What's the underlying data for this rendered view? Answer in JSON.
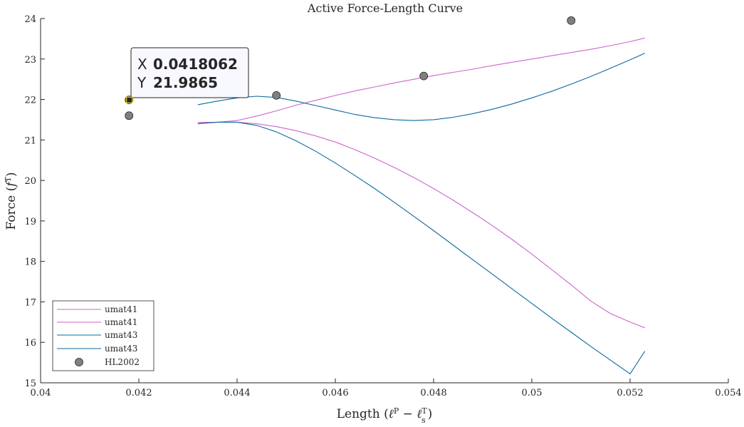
{
  "colors": {
    "umat41": "#cc66cc",
    "umat43": "#0b6aa2",
    "hl2002_fill": "#808080",
    "datatip_value": "#1a8fe0",
    "axis": "#262626"
  },
  "chart_data": {
    "type": "line",
    "title": "Active Force-Length Curve",
    "xlabel": {
      "main": "Length (",
      "ell": "ℓ",
      "supP": "P",
      "minus": " − ",
      "supT": "T",
      "subs": "s",
      "close": ")"
    },
    "ylabel": {
      "main": "Force (",
      "f": "f",
      "supT": "T",
      "close": ")"
    },
    "xlim": [
      0.04,
      0.054
    ],
    "ylim": [
      15,
      24
    ],
    "xticks": [
      0.04,
      0.042,
      0.044,
      0.046,
      0.048,
      0.05,
      0.052,
      0.054
    ],
    "xtick_labels": [
      "0.04",
      "0.042",
      "0.044",
      "0.046",
      "0.048",
      "0.05",
      "0.052",
      "0.054"
    ],
    "yticks": [
      15,
      16,
      17,
      18,
      19,
      20,
      21,
      22,
      23,
      24
    ],
    "ytick_labels": [
      "15",
      "16",
      "17",
      "18",
      "19",
      "20",
      "21",
      "22",
      "23",
      "24"
    ],
    "grid": false,
    "legend_position": "bottom-left",
    "series": [
      {
        "name": "umat41",
        "kind": "line",
        "color": "#cc66cc",
        "x": [
          0.0432,
          0.0436,
          0.044,
          0.0444,
          0.0448,
          0.0452,
          0.0456,
          0.046,
          0.0464,
          0.0468,
          0.0472,
          0.0476,
          0.048,
          0.0484,
          0.0488,
          0.0492,
          0.0496,
          0.05,
          0.0504,
          0.0508,
          0.0512,
          0.0516,
          0.052,
          0.0523
        ],
        "y": [
          21.43,
          21.44,
          21.48,
          21.59,
          21.72,
          21.86,
          21.98,
          22.1,
          22.21,
          22.31,
          22.41,
          22.5,
          22.59,
          22.67,
          22.75,
          22.84,
          22.92,
          23.0,
          23.08,
          23.16,
          23.24,
          23.33,
          23.43,
          23.52
        ]
      },
      {
        "name": "umat41",
        "kind": "line",
        "color": "#cc66cc",
        "x": [
          0.0432,
          0.0436,
          0.044,
          0.0444,
          0.0448,
          0.0452,
          0.0456,
          0.046,
          0.0464,
          0.0468,
          0.0472,
          0.0476,
          0.048,
          0.0484,
          0.0488,
          0.0492,
          0.0496,
          0.05,
          0.0504,
          0.0508,
          0.0512,
          0.0516,
          0.052,
          0.0523
        ],
        "y": [
          21.43,
          21.44,
          21.44,
          21.4,
          21.33,
          21.23,
          21.1,
          20.95,
          20.76,
          20.55,
          20.32,
          20.07,
          19.8,
          19.51,
          19.2,
          18.88,
          18.54,
          18.18,
          17.8,
          17.42,
          17.02,
          16.71,
          16.5,
          16.36
        ]
      },
      {
        "name": "umat43",
        "kind": "line",
        "color": "#0b6aa2",
        "x": [
          0.0432,
          0.0436,
          0.044,
          0.0444,
          0.0448,
          0.0452,
          0.0456,
          0.046,
          0.0464,
          0.0468,
          0.0472,
          0.0476,
          0.048,
          0.0484,
          0.0488,
          0.0492,
          0.0496,
          0.05,
          0.0504,
          0.0508,
          0.0512,
          0.0516,
          0.052,
          0.0523
        ],
        "y": [
          21.87,
          21.96,
          22.04,
          22.08,
          22.05,
          21.96,
          21.85,
          21.74,
          21.63,
          21.55,
          21.5,
          21.48,
          21.5,
          21.56,
          21.65,
          21.76,
          21.89,
          22.04,
          22.2,
          22.38,
          22.57,
          22.77,
          22.98,
          23.14
        ]
      },
      {
        "name": "umat43",
        "kind": "line",
        "color": "#0b6aa2",
        "x": [
          0.0432,
          0.0436,
          0.044,
          0.0444,
          0.0448,
          0.0452,
          0.0456,
          0.046,
          0.0464,
          0.0468,
          0.0472,
          0.0476,
          0.048,
          0.0484,
          0.0488,
          0.0492,
          0.0496,
          0.05,
          0.0504,
          0.0508,
          0.0512,
          0.0516,
          0.052,
          0.0523
        ],
        "y": [
          21.4,
          21.44,
          21.44,
          21.36,
          21.2,
          20.98,
          20.72,
          20.43,
          20.12,
          19.8,
          19.46,
          19.11,
          18.76,
          18.4,
          18.04,
          17.68,
          17.32,
          16.96,
          16.6,
          16.25,
          15.9,
          15.56,
          15.22,
          15.78
        ]
      },
      {
        "name": "HL2002",
        "kind": "scatter",
        "color": "#808080",
        "x": [
          0.0418,
          0.0418,
          0.0448,
          0.0478,
          0.0508
        ],
        "y": [
          21.6,
          21.99,
          22.1,
          22.58,
          23.95
        ]
      }
    ],
    "legend": [
      "umat41",
      "umat41",
      "umat43",
      "umat43",
      "HL2002"
    ],
    "datatip": {
      "x_key": "X",
      "x_value": "0.0418062",
      "y_key": "Y",
      "y_value": "21.9865",
      "anchor_x": 0.0418062,
      "anchor_y": 21.9865
    }
  }
}
